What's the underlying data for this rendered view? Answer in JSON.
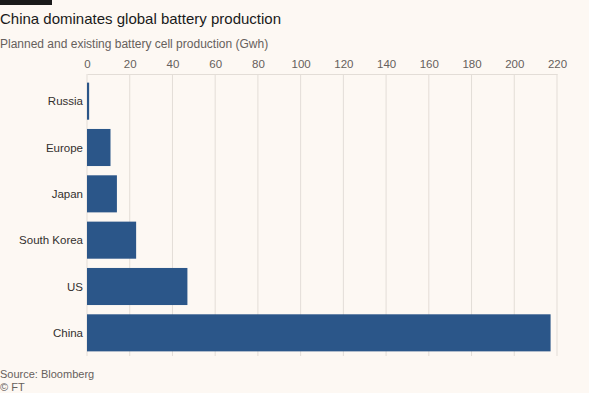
{
  "chart_data": {
    "type": "bar",
    "orientation": "horizontal",
    "title": "China dominates global battery production",
    "subtitle": "Planned and existing battery cell production (Gwh)",
    "source": "Source: Bloomberg",
    "credit": "© FT",
    "categories": [
      "Russia",
      "Europe",
      "Japan",
      "South Korea",
      "US",
      "China"
    ],
    "values": [
      1,
      11,
      14,
      23,
      47,
      217
    ],
    "color": "#2b5689",
    "xlim": [
      0,
      220
    ],
    "xticks": [
      0,
      20,
      40,
      60,
      80,
      100,
      120,
      140,
      160,
      180,
      200,
      220
    ],
    "grid": true
  }
}
